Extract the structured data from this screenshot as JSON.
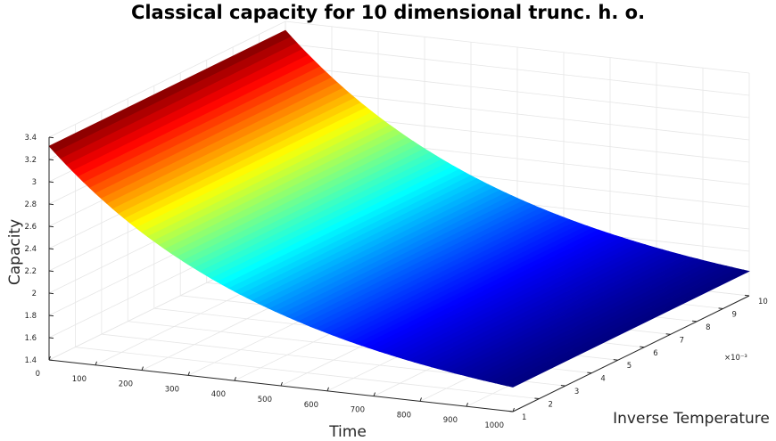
{
  "chart_data": {
    "type": "surface",
    "title": "Classical capacity for 10 dimensional trunc. h. o.",
    "xlabel": "Time",
    "ylabel": "Inverse Temperature",
    "zlabel": "Capacity",
    "y_exponent_label": "×10⁻³",
    "x_ticks": [
      "0",
      "100",
      "200",
      "300",
      "400",
      "500",
      "600",
      "700",
      "800",
      "900",
      "1000"
    ],
    "y_ticks": [
      "1",
      "2",
      "3",
      "4",
      "5",
      "6",
      "7",
      "8",
      "9",
      "10"
    ],
    "z_ticks": [
      "1.4",
      "1.6",
      "1.8",
      "2",
      "2.2",
      "2.4",
      "2.6",
      "2.8",
      "3",
      "3.2",
      "3.4"
    ],
    "xlim": [
      0,
      1000
    ],
    "ylim": [
      0.001,
      0.01
    ],
    "zlim": [
      1.4,
      3.4
    ],
    "colormap": "jet",
    "grid": true,
    "surface": {
      "capacity_at_time_0": 3.32,
      "capacity_at_time_1000": 1.62,
      "decay": "smooth exponential decrease with time, nearly constant in inverse temperature"
    }
  }
}
